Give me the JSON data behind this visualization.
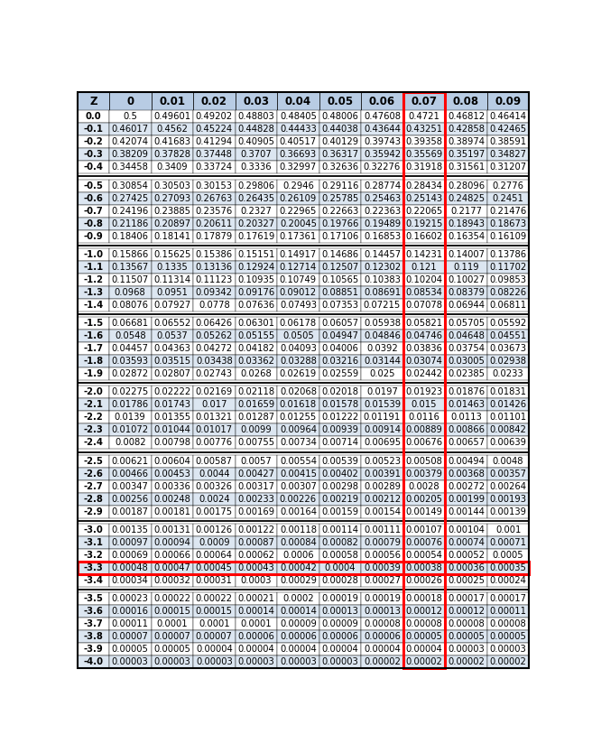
{
  "columns": [
    "Z",
    "0",
    "0.01",
    "0.02",
    "0.03",
    "0.04",
    "0.05",
    "0.06",
    "0.07",
    "0.08",
    "0.09"
  ],
  "rows": [
    [
      "0.0",
      "0.5",
      "0.49601",
      "0.49202",
      "0.48803",
      "0.48405",
      "0.48006",
      "0.47608",
      "0.4721",
      "0.46812",
      "0.46414"
    ],
    [
      "-0.1",
      "0.46017",
      "0.4562",
      "0.45224",
      "0.44828",
      "0.44433",
      "0.44038",
      "0.43644",
      "0.43251",
      "0.42858",
      "0.42465"
    ],
    [
      "-0.2",
      "0.42074",
      "0.41683",
      "0.41294",
      "0.40905",
      "0.40517",
      "0.40129",
      "0.39743",
      "0.39358",
      "0.38974",
      "0.38591"
    ],
    [
      "-0.3",
      "0.38209",
      "0.37828",
      "0.37448",
      "0.3707",
      "0.36693",
      "0.36317",
      "0.35942",
      "0.35569",
      "0.35197",
      "0.34827"
    ],
    [
      "-0.4",
      "0.34458",
      "0.3409",
      "0.33724",
      "0.3336",
      "0.32997",
      "0.32636",
      "0.32276",
      "0.31918",
      "0.31561",
      "0.31207"
    ],
    [
      "-0.5",
      "0.30854",
      "0.30503",
      "0.30153",
      "0.29806",
      "0.2946",
      "0.29116",
      "0.28774",
      "0.28434",
      "0.28096",
      "0.2776"
    ],
    [
      "-0.6",
      "0.27425",
      "0.27093",
      "0.26763",
      "0.26435",
      "0.26109",
      "0.25785",
      "0.25463",
      "0.25143",
      "0.24825",
      "0.2451"
    ],
    [
      "-0.7",
      "0.24196",
      "0.23885",
      "0.23576",
      "0.2327",
      "0.22965",
      "0.22663",
      "0.22363",
      "0.22065",
      "0.2177",
      "0.21476"
    ],
    [
      "-0.8",
      "0.21186",
      "0.20897",
      "0.20611",
      "0.20327",
      "0.20045",
      "0.19766",
      "0.19489",
      "0.19215",
      "0.18943",
      "0.18673"
    ],
    [
      "-0.9",
      "0.18406",
      "0.18141",
      "0.17879",
      "0.17619",
      "0.17361",
      "0.17106",
      "0.16853",
      "0.16602",
      "0.16354",
      "0.16109"
    ],
    [
      "-1.0",
      "0.15866",
      "0.15625",
      "0.15386",
      "0.15151",
      "0.14917",
      "0.14686",
      "0.14457",
      "0.14231",
      "0.14007",
      "0.13786"
    ],
    [
      "-1.1",
      "0.13567",
      "0.1335",
      "0.13136",
      "0.12924",
      "0.12714",
      "0.12507",
      "0.12302",
      "0.121",
      "0.119",
      "0.11702"
    ],
    [
      "-1.2",
      "0.11507",
      "0.11314",
      "0.11123",
      "0.10935",
      "0.10749",
      "0.10565",
      "0.10383",
      "0.10204",
      "0.10027",
      "0.09853"
    ],
    [
      "-1.3",
      "0.0968",
      "0.0951",
      "0.09342",
      "0.09176",
      "0.09012",
      "0.08851",
      "0.08691",
      "0.08534",
      "0.08379",
      "0.08226"
    ],
    [
      "-1.4",
      "0.08076",
      "0.07927",
      "0.0778",
      "0.07636",
      "0.07493",
      "0.07353",
      "0.07215",
      "0.07078",
      "0.06944",
      "0.06811"
    ],
    [
      "-1.5",
      "0.06681",
      "0.06552",
      "0.06426",
      "0.06301",
      "0.06178",
      "0.06057",
      "0.05938",
      "0.05821",
      "0.05705",
      "0.05592"
    ],
    [
      "-1.6",
      "0.0548",
      "0.0537",
      "0.05262",
      "0.05155",
      "0.0505",
      "0.04947",
      "0.04846",
      "0.04746",
      "0.04648",
      "0.04551"
    ],
    [
      "-1.7",
      "0.04457",
      "0.04363",
      "0.04272",
      "0.04182",
      "0.04093",
      "0.04006",
      "0.0392",
      "0.03836",
      "0.03754",
      "0.03673"
    ],
    [
      "-1.8",
      "0.03593",
      "0.03515",
      "0.03438",
      "0.03362",
      "0.03288",
      "0.03216",
      "0.03144",
      "0.03074",
      "0.03005",
      "0.02938"
    ],
    [
      "-1.9",
      "0.02872",
      "0.02807",
      "0.02743",
      "0.0268",
      "0.02619",
      "0.02559",
      "0.025",
      "0.02442",
      "0.02385",
      "0.0233"
    ],
    [
      "-2.0",
      "0.02275",
      "0.02222",
      "0.02169",
      "0.02118",
      "0.02068",
      "0.02018",
      "0.0197",
      "0.01923",
      "0.01876",
      "0.01831"
    ],
    [
      "-2.1",
      "0.01786",
      "0.01743",
      "0.017",
      "0.01659",
      "0.01618",
      "0.01578",
      "0.01539",
      "0.015",
      "0.01463",
      "0.01426"
    ],
    [
      "-2.2",
      "0.0139",
      "0.01355",
      "0.01321",
      "0.01287",
      "0.01255",
      "0.01222",
      "0.01191",
      "0.0116",
      "0.0113",
      "0.01101"
    ],
    [
      "-2.3",
      "0.01072",
      "0.01044",
      "0.01017",
      "0.0099",
      "0.00964",
      "0.00939",
      "0.00914",
      "0.00889",
      "0.00866",
      "0.00842"
    ],
    [
      "-2.4",
      "0.0082",
      "0.00798",
      "0.00776",
      "0.00755",
      "0.00734",
      "0.00714",
      "0.00695",
      "0.00676",
      "0.00657",
      "0.00639"
    ],
    [
      "-2.5",
      "0.00621",
      "0.00604",
      "0.00587",
      "0.0057",
      "0.00554",
      "0.00539",
      "0.00523",
      "0.00508",
      "0.00494",
      "0.0048"
    ],
    [
      "-2.6",
      "0.00466",
      "0.00453",
      "0.0044",
      "0.00427",
      "0.00415",
      "0.00402",
      "0.00391",
      "0.00379",
      "0.00368",
      "0.00357"
    ],
    [
      "-2.7",
      "0.00347",
      "0.00336",
      "0.00326",
      "0.00317",
      "0.00307",
      "0.00298",
      "0.00289",
      "0.0028",
      "0.00272",
      "0.00264"
    ],
    [
      "-2.8",
      "0.00256",
      "0.00248",
      "0.0024",
      "0.00233",
      "0.00226",
      "0.00219",
      "0.00212",
      "0.00205",
      "0.00199",
      "0.00193"
    ],
    [
      "-2.9",
      "0.00187",
      "0.00181",
      "0.00175",
      "0.00169",
      "0.00164",
      "0.00159",
      "0.00154",
      "0.00149",
      "0.00144",
      "0.00139"
    ],
    [
      "-3.0",
      "0.00135",
      "0.00131",
      "0.00126",
      "0.00122",
      "0.00118",
      "0.00114",
      "0.00111",
      "0.00107",
      "0.00104",
      "0.001"
    ],
    [
      "-3.1",
      "0.00097",
      "0.00094",
      "0.0009",
      "0.00087",
      "0.00084",
      "0.00082",
      "0.00079",
      "0.00076",
      "0.00074",
      "0.00071"
    ],
    [
      "-3.2",
      "0.00069",
      "0.00066",
      "0.00064",
      "0.00062",
      "0.0006",
      "0.00058",
      "0.00056",
      "0.00054",
      "0.00052",
      "0.0005"
    ],
    [
      "-3.3",
      "0.00048",
      "0.00047",
      "0.00045",
      "0.00043",
      "0.00042",
      "0.0004",
      "0.00039",
      "0.00038",
      "0.00036",
      "0.00035"
    ],
    [
      "-3.4",
      "0.00034",
      "0.00032",
      "0.00031",
      "0.0003",
      "0.00029",
      "0.00028",
      "0.00027",
      "0.00026",
      "0.00025",
      "0.00024"
    ],
    [
      "-3.5",
      "0.00023",
      "0.00022",
      "0.00022",
      "0.00021",
      "0.0002",
      "0.00019",
      "0.00019",
      "0.00018",
      "0.00017",
      "0.00017"
    ],
    [
      "-3.6",
      "0.00016",
      "0.00015",
      "0.00015",
      "0.00014",
      "0.00014",
      "0.00013",
      "0.00013",
      "0.00012",
      "0.00012",
      "0.00011"
    ],
    [
      "-3.7",
      "0.00011",
      "0.0001",
      "0.0001",
      "0.0001",
      "0.00009",
      "0.00009",
      "0.00008",
      "0.00008",
      "0.00008",
      "0.00008"
    ],
    [
      "-3.8",
      "0.00007",
      "0.00007",
      "0.00007",
      "0.00006",
      "0.00006",
      "0.00006",
      "0.00006",
      "0.00005",
      "0.00005",
      "0.00005"
    ],
    [
      "-3.9",
      "0.00005",
      "0.00005",
      "0.00004",
      "0.00004",
      "0.00004",
      "0.00004",
      "0.00004",
      "0.00004",
      "0.00003",
      "0.00003"
    ],
    [
      "-4.0",
      "0.00003",
      "0.00003",
      "0.00003",
      "0.00003",
      "0.00003",
      "0.00003",
      "0.00002",
      "0.00002",
      "0.00002",
      "0.00002"
    ]
  ],
  "header_bg": "#b8cce4",
  "group_sep_after": [
    5,
    10,
    15,
    20,
    25,
    30,
    35
  ],
  "highlight_col": 8,
  "highlight_row": 33,
  "alt_row_color": "#dce6f1",
  "white_row_color": "#ffffff",
  "font_size": 7.2,
  "header_font_size": 8.5,
  "fig_width": 6.56,
  "fig_height": 8.34
}
